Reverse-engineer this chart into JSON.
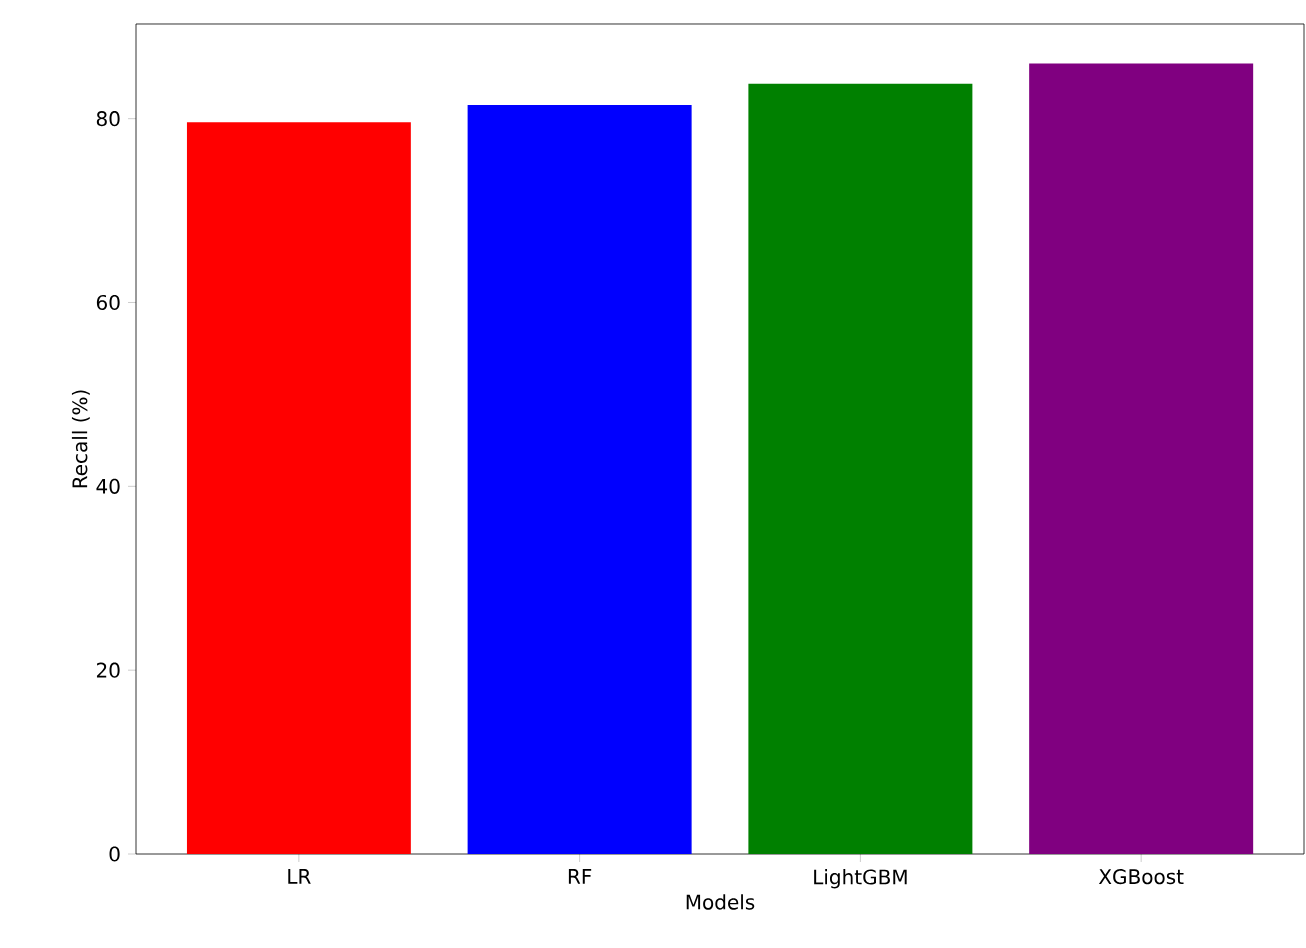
{
  "chart_data": {
    "type": "bar",
    "xlabel": "Models",
    "ylabel": "Recall (%)",
    "categories": [
      "LR",
      "RF",
      "LightGBM",
      "XGBoost"
    ],
    "values": [
      79.6,
      81.5,
      83.8,
      86.0
    ],
    "colors": [
      "#ff0000",
      "#0000ff",
      "#008000",
      "#800080"
    ],
    "ylim": [
      0,
      90.3
    ],
    "yticks": [
      0,
      20,
      40,
      60,
      80
    ],
    "grid": false
  }
}
